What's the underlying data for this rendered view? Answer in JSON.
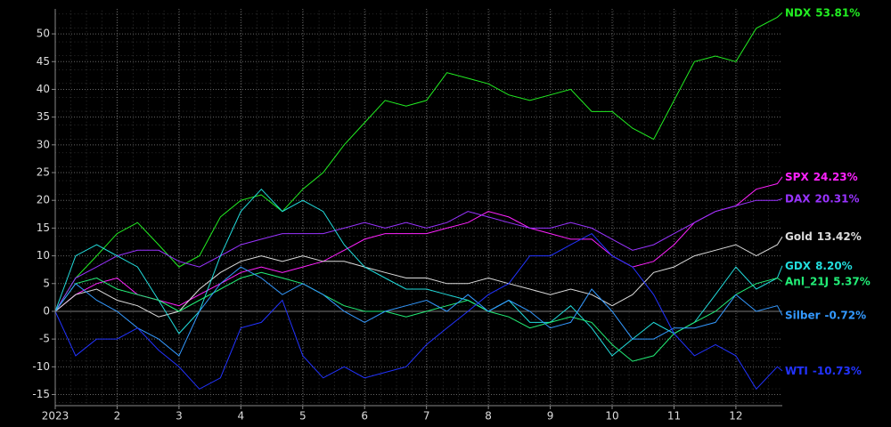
{
  "chart_data": {
    "type": "line",
    "x": [
      1,
      1.33,
      1.67,
      2,
      2.33,
      2.67,
      3,
      3.33,
      3.67,
      4,
      4.33,
      4.67,
      5,
      5.33,
      5.67,
      6,
      6.33,
      6.67,
      7,
      7.33,
      7.67,
      8,
      8.33,
      8.67,
      9,
      9.33,
      9.67,
      10,
      10.33,
      10.67,
      11,
      11.33,
      11.67,
      12,
      12.33,
      12.67,
      12.75
    ],
    "xlim": [
      1,
      12.75
    ],
    "xticks": [
      {
        "value": 1,
        "label": "2023"
      },
      2,
      3,
      4,
      5,
      6,
      7,
      8,
      9,
      10,
      11,
      12
    ],
    "ylim": [
      -17,
      54.5
    ],
    "yticks": [
      -15,
      -10,
      -5,
      0,
      5,
      10,
      15,
      20,
      25,
      30,
      35,
      40,
      45,
      50
    ],
    "grid": true,
    "series": [
      {
        "name": "NDX",
        "color": "#22ee22",
        "values": [
          0,
          6,
          10,
          14,
          16,
          12,
          8,
          10,
          17,
          20,
          21,
          18,
          22,
          25,
          30,
          34,
          38,
          37,
          38,
          43,
          42,
          41,
          39,
          38,
          39,
          40,
          36,
          36,
          33,
          31,
          38,
          45,
          46,
          45,
          51,
          53,
          53.81
        ],
        "value_labels": [
          null,
          null,
          null,
          null,
          null,
          null,
          null,
          null,
          null,
          null,
          null,
          null,
          null,
          null,
          null,
          null,
          null,
          null,
          null,
          null,
          null,
          null,
          null,
          null,
          null,
          null,
          null,
          null,
          null,
          null,
          null,
          null,
          null,
          null,
          null,
          null,
          "53.81%"
        ]
      },
      {
        "name": "SPX",
        "color": "#ff22ff",
        "values": [
          0,
          3,
          5,
          6,
          3,
          2,
          1,
          3,
          5,
          7,
          8,
          7,
          8,
          9,
          11,
          13,
          14,
          14,
          14,
          15,
          16,
          18,
          17,
          15,
          14,
          13,
          13,
          10,
          8,
          9,
          12,
          16,
          18,
          19,
          22,
          23,
          24.23
        ],
        "value_labels": [
          null,
          null,
          null,
          null,
          null,
          null,
          null,
          null,
          null,
          null,
          null,
          null,
          null,
          null,
          null,
          null,
          null,
          null,
          null,
          null,
          null,
          null,
          null,
          null,
          null,
          null,
          null,
          null,
          null,
          null,
          null,
          null,
          null,
          null,
          null,
          null,
          "24.23%"
        ]
      },
      {
        "name": "DAX",
        "color": "#9933ff",
        "values": [
          0,
          6,
          8,
          10,
          11,
          11,
          9,
          8,
          10,
          12,
          13,
          14,
          14,
          14,
          15,
          16,
          15,
          16,
          15,
          16,
          18,
          17,
          16,
          15,
          15,
          16,
          15,
          13,
          11,
          12,
          14,
          16,
          18,
          19,
          20,
          20,
          20.31
        ],
        "value_labels": [
          null,
          null,
          null,
          null,
          null,
          null,
          null,
          null,
          null,
          null,
          null,
          null,
          null,
          null,
          null,
          null,
          null,
          null,
          null,
          null,
          null,
          null,
          null,
          null,
          null,
          null,
          null,
          null,
          null,
          null,
          null,
          null,
          null,
          null,
          null,
          null,
          "20.31%"
        ]
      },
      {
        "name": "Gold",
        "color": "#dddddd",
        "values": [
          0,
          3,
          4,
          2,
          1,
          -1,
          0,
          4,
          7,
          9,
          10,
          9,
          10,
          9,
          9,
          8,
          7,
          6,
          6,
          5,
          5,
          6,
          5,
          4,
          3,
          4,
          3,
          1,
          3,
          7,
          8,
          10,
          11,
          12,
          10,
          12,
          13.42
        ],
        "value_labels": [
          null,
          null,
          null,
          null,
          null,
          null,
          null,
          null,
          null,
          null,
          null,
          null,
          null,
          null,
          null,
          null,
          null,
          null,
          null,
          null,
          null,
          null,
          null,
          null,
          null,
          null,
          null,
          null,
          null,
          null,
          null,
          null,
          null,
          null,
          null,
          null,
          "13.42%"
        ]
      },
      {
        "name": "GDX",
        "color": "#22dddd",
        "values": [
          0,
          10,
          12,
          10,
          8,
          2,
          -4,
          0,
          10,
          18,
          22,
          18,
          20,
          18,
          12,
          8,
          6,
          4,
          4,
          3,
          2,
          0,
          2,
          -2,
          -2,
          1,
          -3,
          -8,
          -5,
          -2,
          -4,
          -2,
          3,
          8,
          4,
          6,
          8.2
        ],
        "value_labels": [
          null,
          null,
          null,
          null,
          null,
          null,
          null,
          null,
          null,
          null,
          null,
          null,
          null,
          null,
          null,
          null,
          null,
          null,
          null,
          null,
          null,
          null,
          null,
          null,
          null,
          null,
          null,
          null,
          null,
          null,
          null,
          null,
          null,
          null,
          null,
          null,
          "8.20%"
        ]
      },
      {
        "name": "Anl_21J",
        "color": "#22ee77",
        "values": [
          0,
          5,
          6,
          4,
          3,
          2,
          0,
          2,
          4,
          6,
          7,
          6,
          5,
          3,
          1,
          0,
          0,
          -1,
          0,
          1,
          2,
          0,
          -1,
          -3,
          -2,
          -1,
          -2,
          -6,
          -9,
          -8,
          -4,
          -2,
          0,
          3,
          5,
          6,
          5.37
        ],
        "value_labels": [
          null,
          null,
          null,
          null,
          null,
          null,
          null,
          null,
          null,
          null,
          null,
          null,
          null,
          null,
          null,
          null,
          null,
          null,
          null,
          null,
          null,
          null,
          null,
          null,
          null,
          null,
          null,
          null,
          null,
          null,
          null,
          null,
          null,
          null,
          null,
          null,
          "5.37%"
        ]
      },
      {
        "name": "Silber",
        "color": "#3399ff",
        "values": [
          0,
          5,
          2,
          0,
          -3,
          -5,
          -8,
          0,
          5,
          8,
          6,
          3,
          5,
          3,
          0,
          -2,
          0,
          1,
          2,
          0,
          3,
          0,
          2,
          0,
          -3,
          -2,
          4,
          0,
          -5,
          -5,
          -3,
          -3,
          -2,
          3,
          0,
          1,
          -0.72
        ],
        "value_labels": [
          null,
          null,
          null,
          null,
          null,
          null,
          null,
          null,
          null,
          null,
          null,
          null,
          null,
          null,
          null,
          null,
          null,
          null,
          null,
          null,
          null,
          null,
          null,
          null,
          null,
          null,
          null,
          null,
          null,
          null,
          null,
          null,
          null,
          null,
          null,
          null,
          "-0.72%"
        ]
      },
      {
        "name": "WTI",
        "color": "#2233ff",
        "values": [
          0,
          -8,
          -5,
          -5,
          -3,
          -7,
          -10,
          -14,
          -12,
          -3,
          -2,
          2,
          -8,
          -12,
          -10,
          -12,
          -11,
          -10,
          -6,
          -3,
          0,
          3,
          5,
          10,
          10,
          12,
          14,
          10,
          8,
          3,
          -4,
          -8,
          -6,
          -8,
          -14,
          -10,
          -10.73
        ],
        "value_labels": [
          null,
          null,
          null,
          null,
          null,
          null,
          null,
          null,
          null,
          null,
          null,
          null,
          null,
          null,
          null,
          null,
          null,
          null,
          null,
          null,
          null,
          null,
          null,
          null,
          null,
          null,
          null,
          null,
          null,
          null,
          null,
          null,
          null,
          null,
          null,
          null,
          "-10.73%"
        ]
      }
    ]
  }
}
